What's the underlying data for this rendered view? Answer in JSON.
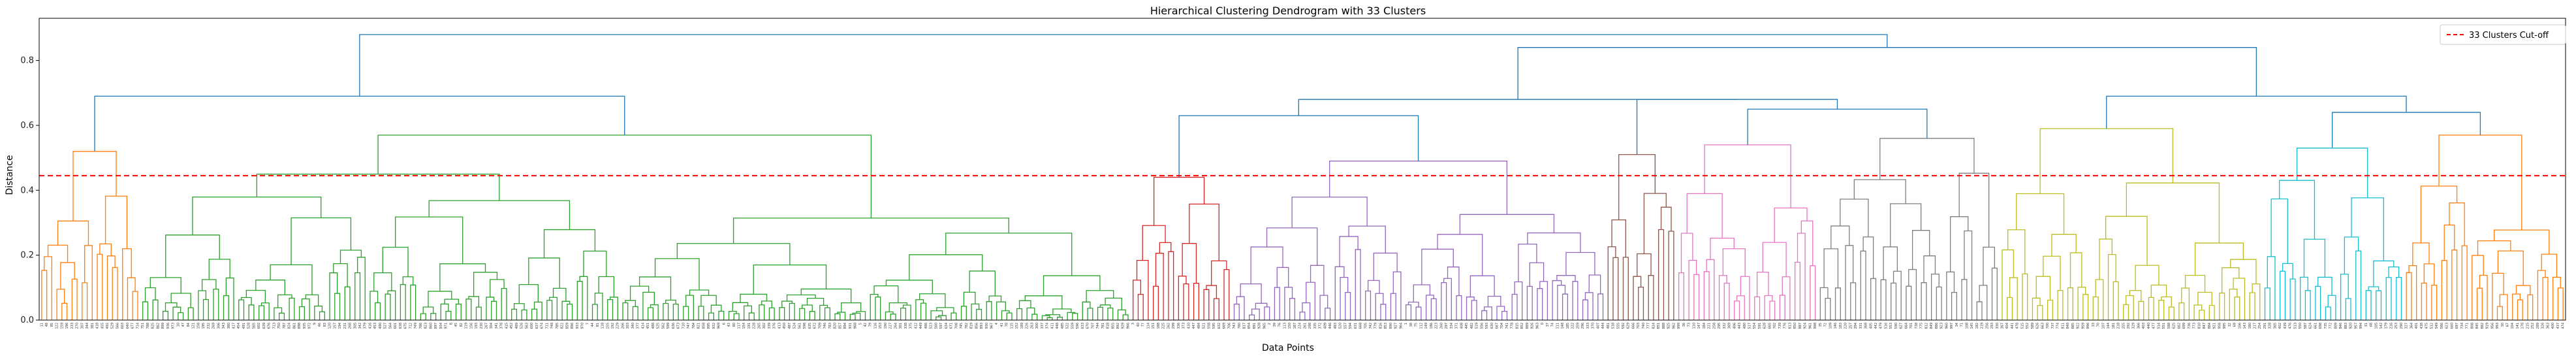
{
  "chart_data": {
    "type": "dendrogram",
    "title": "Hierarchical Clustering Dendrogram with 33 Clusters",
    "xlabel": "Data Points",
    "ylabel": "Distance",
    "ylim": [
      0,
      0.93
    ],
    "yticks": [
      0.0,
      0.2,
      0.4,
      0.6,
      0.8
    ],
    "cutoff": 0.445,
    "legend": {
      "label": "33 Clusters Cut-off",
      "placement": "top-right",
      "color": "#ff0000"
    },
    "grid": false,
    "n_leaves": 500,
    "above_threshold_color": "#1f77b4",
    "groups": [
      {
        "color": "#ff7f0e",
        "leaves": 20,
        "height": 0.52
      },
      {
        "color": "#2ca02c",
        "leaves": 196,
        "height": 0.57
      },
      {
        "color": "#d62728",
        "leaves": 20,
        "height": 0.44
      },
      {
        "color": "#9467bd",
        "leaves": 74,
        "height": 0.49
      },
      {
        "color": "#8c564b",
        "leaves": 14,
        "height": 0.51
      },
      {
        "color": "#e377c2",
        "leaves": 28,
        "height": 0.54
      },
      {
        "color": "#7f7f7f",
        "leaves": 36,
        "height": 0.56
      },
      {
        "color": "#bcbd22",
        "leaves": 52,
        "height": 0.59
      },
      {
        "color": "#17becf",
        "leaves": 28,
        "height": 0.53
      },
      {
        "color": "#ff7f0e",
        "leaves": 32,
        "height": 0.57
      }
    ],
    "top_links": [
      {
        "id": "A",
        "left": "g0",
        "right": "g1",
        "height": 0.69
      },
      {
        "id": "B",
        "left": "g2",
        "right": "g3",
        "height": 0.63
      },
      {
        "id": "C",
        "left": "g5",
        "right": "g6",
        "height": 0.65
      },
      {
        "id": "D",
        "left": "g4",
        "right": "C",
        "height": 0.68
      },
      {
        "id": "E",
        "left": "B",
        "right": "D",
        "height": 0.68
      },
      {
        "id": "F",
        "left": "g8",
        "right": "g9",
        "height": 0.64
      },
      {
        "id": "G",
        "left": "g7",
        "right": "F",
        "height": 0.69
      },
      {
        "id": "H",
        "left": "E",
        "right": "G",
        "height": 0.84
      },
      {
        "id": "I",
        "left": "A",
        "right": "H",
        "height": 0.88
      }
    ]
  }
}
